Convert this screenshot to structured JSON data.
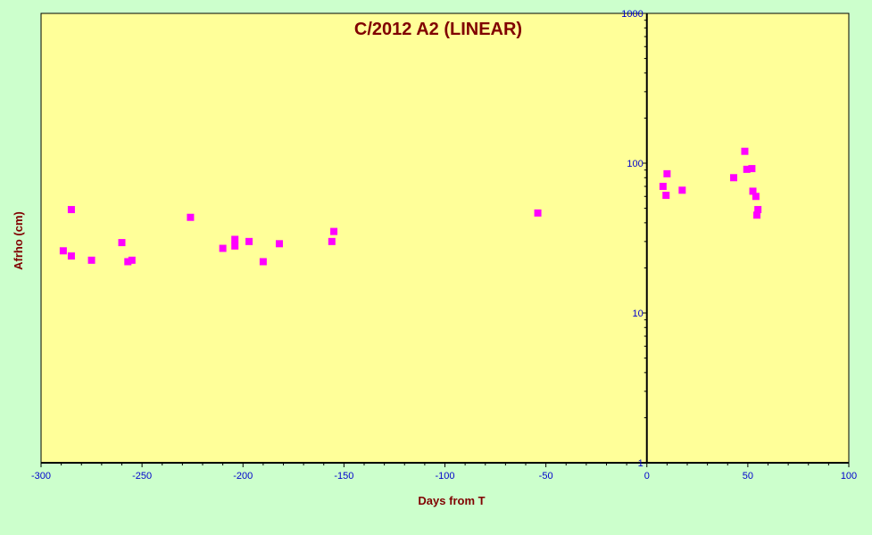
{
  "chart_data": {
    "type": "scatter",
    "title": "C/2012 A2 (LINEAR)",
    "xlabel": "Days from  T",
    "ylabel": "Afrho (cm)",
    "xlim": [
      -300,
      100
    ],
    "ylim": [
      1,
      1000
    ],
    "yscale": "log",
    "x_ticks": [
      -300,
      -250,
      -200,
      -150,
      -100,
      -50,
      0,
      50,
      100
    ],
    "y_ticks": [
      1,
      10,
      100,
      1000
    ],
    "grid": false,
    "series": [
      {
        "marker": "square",
        "points": [
          [
            -289,
            26
          ],
          [
            -285,
            49
          ],
          [
            -285,
            24
          ],
          [
            -275,
            22.5
          ],
          [
            -260,
            29.5
          ],
          [
            -257,
            22
          ],
          [
            -255,
            22.5
          ],
          [
            -226,
            43.5
          ],
          [
            -210,
            27
          ],
          [
            -204,
            31
          ],
          [
            -204,
            28
          ],
          [
            -197,
            30
          ],
          [
            -190,
            22
          ],
          [
            -182,
            29
          ],
          [
            -156,
            30
          ],
          [
            -155,
            35
          ],
          [
            -54,
            46.5
          ],
          [
            8,
            70
          ],
          [
            9.5,
            61
          ],
          [
            10,
            85
          ],
          [
            17.5,
            66
          ],
          [
            43,
            80
          ],
          [
            48.5,
            120
          ],
          [
            49.5,
            91
          ],
          [
            52,
            92
          ],
          [
            52.5,
            65
          ],
          [
            54,
            60
          ],
          [
            54.5,
            45
          ],
          [
            55,
            49
          ]
        ]
      }
    ],
    "colors": {
      "background": "#ccffcc",
      "plot_area": "#ffff99",
      "marker": "#ff00ff",
      "tick_text": "#0000cc",
      "title_text": "#800000"
    }
  }
}
